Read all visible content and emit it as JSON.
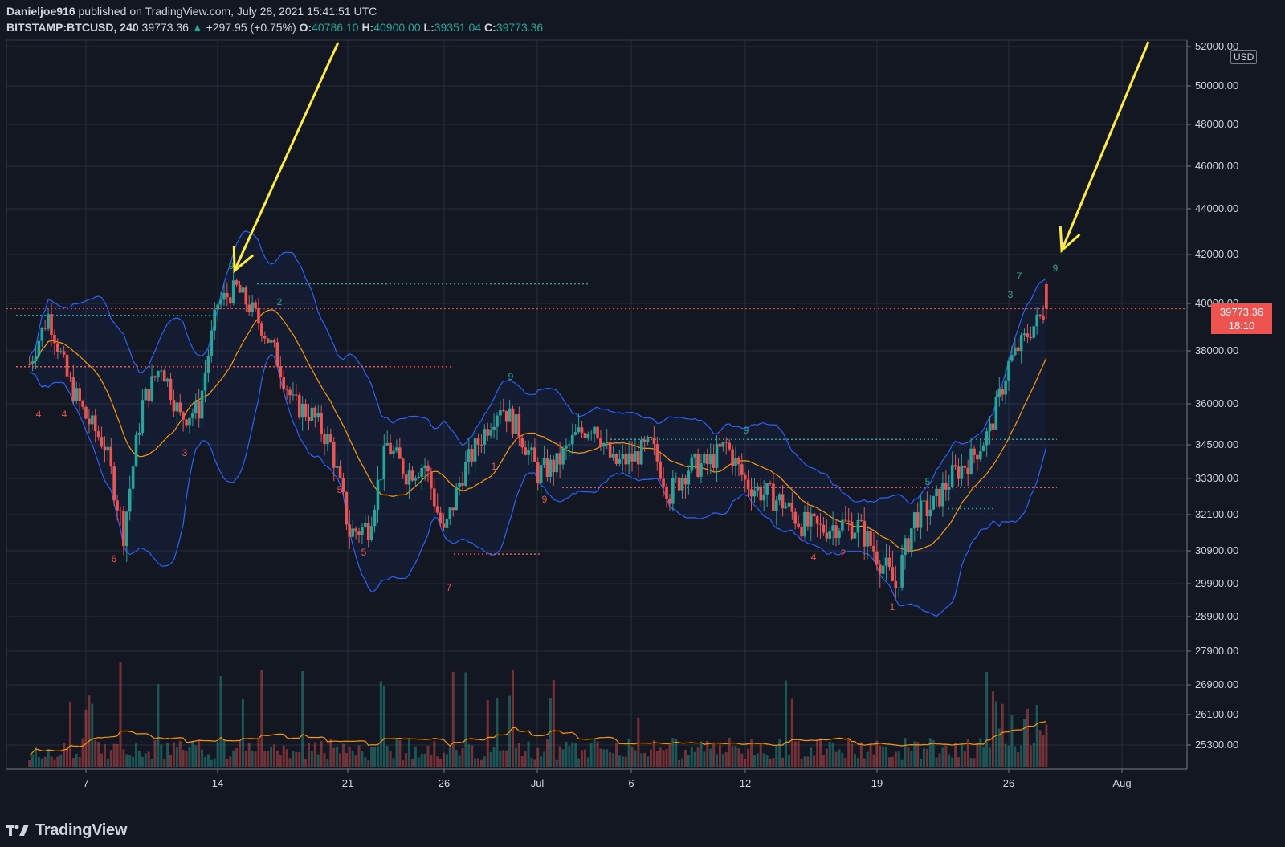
{
  "header": {
    "author": "Danieljoe916",
    "published": "published on TradingView.com, July 28, 2021 15:41:51 UTC",
    "symbol": "BITSTAMP:BTCUSD, 240",
    "last": "39773.36",
    "change": "+297.95 (+0.75%)",
    "o_label": "O:",
    "o": "40786.10",
    "h_label": "H:",
    "h": "40900.00",
    "l_label": "L:",
    "l": "39351.04",
    "c_label": "C:",
    "c": "39773.36"
  },
  "axis": {
    "currency": "USD",
    "price_tag": "39773.36",
    "countdown": "18:10"
  },
  "footer": {
    "brand": "TradingView"
  },
  "colors": {
    "background": "#131722",
    "up": "#26a69a",
    "down": "#ef5350",
    "bb": "#2962ff",
    "ma": "#ff9800",
    "arrow": "#ffeb3b",
    "grid": "#2a2e39"
  },
  "chart_data": {
    "type": "candlestick",
    "ticker": "BITSTAMP:BTCUSD",
    "interval": "240",
    "y_ticks": [
      25300,
      26100,
      26900,
      27900,
      28900,
      29900,
      30900,
      32100,
      33300,
      34500,
      36000,
      38000,
      40000,
      42000,
      44000,
      46000,
      48000,
      50000,
      52000
    ],
    "x_ticks": [
      "7",
      "14",
      "21",
      "26",
      "Jul",
      "6",
      "12",
      "19",
      "26",
      "Aug"
    ],
    "close_path": [
      [
        "Jun 4",
        37500
      ],
      [
        "Jun 5",
        39500
      ],
      [
        "Jun 6",
        37000
      ],
      [
        "Jun 7",
        35500
      ],
      [
        "Jun 8",
        34500
      ],
      [
        "Jun 9",
        31500
      ],
      [
        "Jun 10",
        36000
      ],
      [
        "Jun 11",
        37500
      ],
      [
        "Jun 12",
        35500
      ],
      [
        "Jun 13",
        35800
      ],
      [
        "Jun 14",
        40000
      ],
      [
        "Jun 15",
        40600
      ],
      [
        "Jun 16",
        39500
      ],
      [
        "Jun 17",
        38000
      ],
      [
        "Jun 18",
        36000
      ],
      [
        "Jun 19",
        35600
      ],
      [
        "Jun 20",
        34500
      ],
      [
        "Jun 21",
        31500
      ],
      [
        "Jun 22",
        31700
      ],
      [
        "Jun 23",
        34500
      ],
      [
        "Jun 24",
        33500
      ],
      [
        "Jun 25",
        33800
      ],
      [
        "Jun 26",
        31400
      ],
      [
        "Jun 27",
        33500
      ],
      [
        "Jun 28",
        34800
      ],
      [
        "Jun 29",
        36000
      ],
      [
        "Jun 30",
        35000
      ],
      [
        "Jul 1",
        33500
      ],
      [
        "Jul 2",
        33800
      ],
      [
        "Jul 3",
        34800
      ],
      [
        "Jul 4",
        35300
      ],
      [
        "Jul 5",
        33800
      ],
      [
        "Jul 6",
        34000
      ],
      [
        "Jul 7",
        34500
      ],
      [
        "Jul 8",
        32800
      ],
      [
        "Jul 9",
        33700
      ],
      [
        "Jul 10",
        33800
      ],
      [
        "Jul 11",
        34500
      ],
      [
        "Jul 12",
        33200
      ],
      [
        "Jul 13",
        32800
      ],
      [
        "Jul 14",
        32500
      ],
      [
        "Jul 15",
        31800
      ],
      [
        "Jul 16",
        31600
      ],
      [
        "Jul 17",
        31800
      ],
      [
        "Jul 18",
        31700
      ],
      [
        "Jul 19",
        30800
      ],
      [
        "Jul 20",
        29800
      ],
      [
        "Jul 21",
        32000
      ],
      [
        "Jul 22",
        32400
      ],
      [
        "Jul 23",
        33400
      ],
      [
        "Jul 24",
        34000
      ],
      [
        "Jul 25",
        35000
      ],
      [
        "Jul 26",
        37500
      ],
      [
        "Jul 27",
        38700
      ],
      [
        "Jul 28",
        39773
      ]
    ],
    "resistance_lines": [
      40800,
      39500,
      34700,
      33000,
      37400,
      30800,
      32300
    ],
    "current_price": 39773.36,
    "annotations": [
      "arrow pointing to mid-June high (~41,300)",
      "arrow pointing to current high (~41,600)"
    ]
  }
}
